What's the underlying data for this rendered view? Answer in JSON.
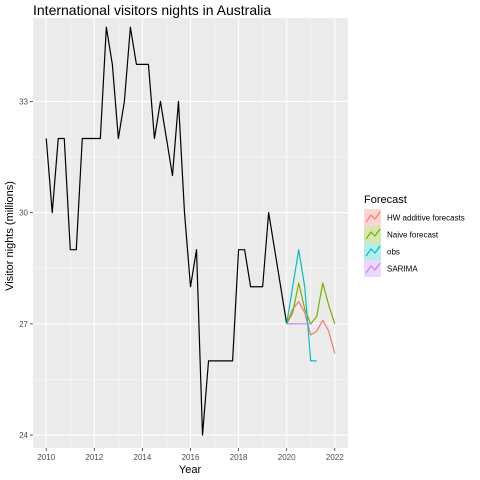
{
  "chart_data": {
    "type": "line",
    "title": "International visitors nights in Australia",
    "xlabel": "Year",
    "ylabel": "Visitor nights (millions)",
    "xlim": [
      2009.45,
      2022.55
    ],
    "ylim": [
      23.65,
      35.25
    ],
    "x_ticks": [
      2010,
      2012,
      2014,
      2016,
      2018,
      2020,
      2022
    ],
    "x_tick_labels": [
      "2010",
      "2012",
      "2014",
      "2016",
      "2018",
      "2020",
      "2022"
    ],
    "y_ticks": [
      24,
      27,
      30,
      33
    ],
    "y_tick_labels": [
      "24",
      "27",
      "30",
      "33"
    ],
    "grid": true,
    "legend_position": "right",
    "legend_title": "Forecast",
    "history": {
      "x": [
        2010.0,
        2010.25,
        2010.5,
        2010.75,
        2011.0,
        2011.25,
        2011.5,
        2011.75,
        2012.0,
        2012.25,
        2012.5,
        2012.75,
        2013.0,
        2013.25,
        2013.5,
        2013.75,
        2014.0,
        2014.25,
        2014.5,
        2014.75,
        2015.0,
        2015.25,
        2015.5,
        2015.75,
        2016.0,
        2016.25,
        2016.5,
        2016.75,
        2017.0,
        2017.25,
        2017.5,
        2017.75,
        2018.0,
        2018.25,
        2018.5,
        2018.75,
        2019.0,
        2019.25,
        2019.5,
        2019.75,
        2020.0
      ],
      "y": [
        32.0,
        30.0,
        32.0,
        32.0,
        29.0,
        29.0,
        32.0,
        32.0,
        32.0,
        32.0,
        35.0,
        34.0,
        32.0,
        33.0,
        35.0,
        34.0,
        34.0,
        34.0,
        32.0,
        33.0,
        32.0,
        31.0,
        33.0,
        30.0,
        28.0,
        29.0,
        24.0,
        26.0,
        26.0,
        26.0,
        26.0,
        26.0,
        29.0,
        29.0,
        28.0,
        28.0,
        28.0,
        30.0,
        29.0,
        28.0,
        27.0
      ],
      "color": "#000000"
    },
    "series": [
      {
        "name": "HW additive forecasts",
        "color": "#F8766D",
        "x": [
          2020.0,
          2020.25,
          2020.5,
          2020.75,
          2021.0,
          2021.25,
          2021.5,
          2021.75,
          2022.0
        ],
        "y": [
          27.0,
          27.4,
          27.6,
          27.3,
          26.7,
          26.8,
          27.1,
          26.8,
          26.2
        ]
      },
      {
        "name": "Naive forecast",
        "color": "#7CAE00",
        "x": [
          2020.0,
          2020.25,
          2020.5,
          2020.75,
          2021.0,
          2021.25,
          2021.5,
          2021.75,
          2022.0
        ],
        "y": [
          27.0,
          27.3,
          28.1,
          27.4,
          27.0,
          27.2,
          28.1,
          27.5,
          27.0
        ]
      },
      {
        "name": "obs",
        "color": "#00BFC4",
        "x": [
          2020.0,
          2020.25,
          2020.5,
          2020.75,
          2021.0,
          2021.25
        ],
        "y": [
          27.0,
          28.0,
          29.0,
          28.0,
          26.0,
          26.0
        ]
      },
      {
        "name": "SARIMA",
        "color": "#C77CFF",
        "x": [
          2020.0,
          2020.25,
          2020.5,
          2020.75,
          2021.0
        ],
        "y": [
          27.0,
          27.0,
          27.0,
          27.0,
          27.0
        ]
      }
    ]
  },
  "colors": {
    "panel_background": "#EBEBEB",
    "grid_major": "#FFFFFF",
    "text": "#000000",
    "tick_text": "#4D4D4D"
  }
}
